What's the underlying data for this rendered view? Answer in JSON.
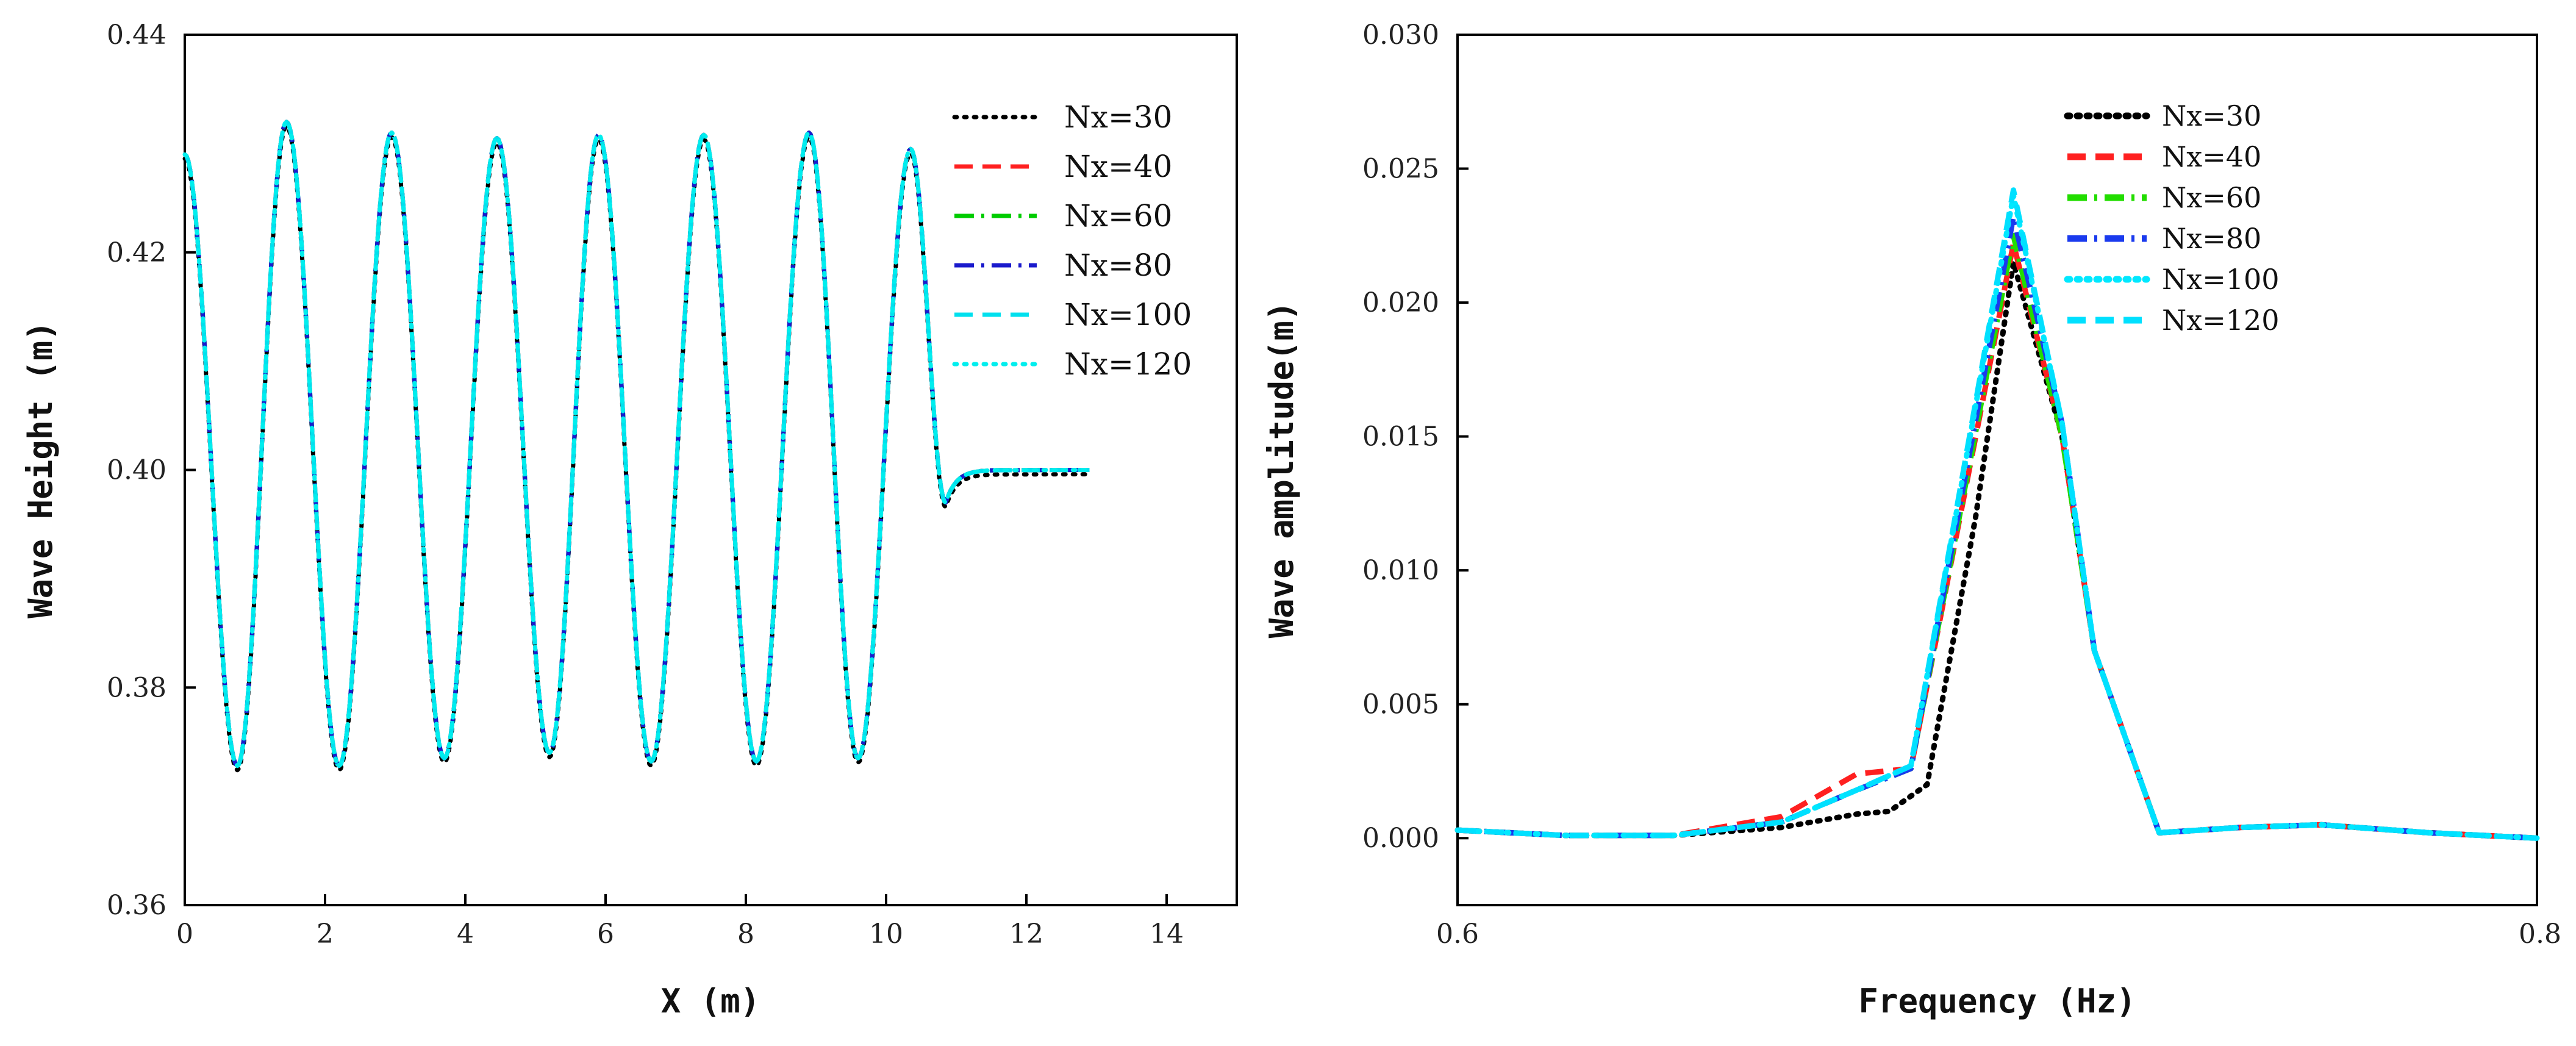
{
  "chart_data": [
    {
      "type": "line",
      "title": "",
      "xlabel": "X (m)",
      "ylabel": "Wave Height (m)",
      "xlim": [
        0,
        15
      ],
      "ylim": [
        0.36,
        0.44
      ],
      "xticks": [
        0,
        2,
        4,
        6,
        8,
        10,
        12,
        14
      ],
      "yticks": [
        0.36,
        0.38,
        0.4,
        0.42,
        0.44
      ],
      "xtick_labels": [
        "0",
        "2",
        "4",
        "6",
        "8",
        "10",
        "12",
        "14"
      ],
      "ytick_labels": [
        "0.36",
        "0.38",
        "0.40",
        "0.42",
        "0.44"
      ],
      "grid": false,
      "legend_position": "top-right",
      "series": [
        {
          "name": "Nx=30",
          "color": "#000000",
          "style": "dotted"
        },
        {
          "name": "Nx=40",
          "color": "#ff2020",
          "style": "dashed"
        },
        {
          "name": "Nx=60",
          "color": "#00cc00",
          "style": "dashdot"
        },
        {
          "name": "Nx=80",
          "color": "#1a1acc",
          "style": "dashdot"
        },
        {
          "name": "Nx=100",
          "color": "#00e0ee",
          "style": "dashed"
        },
        {
          "name": "Nx=120",
          "color": "#00eeee",
          "style": "dotted"
        }
      ],
      "wave_model": {
        "start_x": 0.0,
        "start_height": 0.429,
        "minima": [
          {
            "x": 0.75,
            "h": 0.3728
          },
          {
            "x": 2.2,
            "h": 0.3728
          },
          {
            "x": 3.7,
            "h": 0.3735
          },
          {
            "x": 5.2,
            "h": 0.374
          },
          {
            "x": 6.65,
            "h": 0.3732
          },
          {
            "x": 8.15,
            "h": 0.3732
          },
          {
            "x": 9.6,
            "h": 0.3735
          }
        ],
        "maxima": [
          {
            "x": 1.45,
            "h": 0.432
          },
          {
            "x": 2.95,
            "h": 0.431
          },
          {
            "x": 4.45,
            "h": 0.4305
          },
          {
            "x": 5.9,
            "h": 0.4308
          },
          {
            "x": 7.4,
            "h": 0.4308
          },
          {
            "x": 8.9,
            "h": 0.431
          },
          {
            "x": 10.35,
            "h": 0.4295
          }
        ],
        "trough_end": {
          "x": 10.85,
          "h": 0.397
        },
        "settle": {
          "x": 11.6,
          "h": 0.4
        },
        "end": {
          "x": 12.9,
          "h": 0.4
        }
      }
    },
    {
      "type": "line",
      "title": "",
      "xlabel": "Frequency (Hz)",
      "ylabel": "Wave amplitude(m)",
      "xlim": [
        0.6,
        0.8
      ],
      "ylim": [
        -0.0025,
        0.03
      ],
      "xticks": [
        0.6,
        0.8
      ],
      "yticks": [
        0.0,
        0.005,
        0.01,
        0.015,
        0.02,
        0.025,
        0.03
      ],
      "xtick_labels": [
        "0.6",
        "0.8"
      ],
      "ytick_labels": [
        "0.000",
        "0.005",
        "0.010",
        "0.015",
        "0.020",
        "0.025",
        "0.030"
      ],
      "grid": false,
      "legend_position": "top-center",
      "series": [
        {
          "name": "Nx=30",
          "color": "#000000",
          "style": "dotted",
          "x": [
            0.6,
            0.62,
            0.64,
            0.66,
            0.674,
            0.68,
            0.687,
            0.696,
            0.703,
            0.712,
            0.718,
            0.73,
            0.745,
            0.76,
            0.78,
            0.8
          ],
          "y": [
            0.0003,
            0.0001,
            0.0001,
            0.0004,
            0.0009,
            0.001,
            0.002,
            0.012,
            0.0215,
            0.015,
            0.007,
            0.0002,
            0.0004,
            0.0005,
            0.0002,
            0.0
          ]
        },
        {
          "name": "Nx=40",
          "color": "#ff2020",
          "style": "dashed",
          "x": [
            0.6,
            0.62,
            0.64,
            0.66,
            0.674,
            0.684,
            0.703,
            0.712,
            0.718,
            0.73,
            0.745,
            0.76,
            0.78,
            0.8
          ],
          "y": [
            0.0003,
            0.0001,
            0.0001,
            0.0008,
            0.0024,
            0.0026,
            0.0222,
            0.015,
            0.007,
            0.0002,
            0.0004,
            0.0005,
            0.0002,
            0.0
          ]
        },
        {
          "name": "Nx=60",
          "color": "#22dd00",
          "style": "dashdot",
          "x": [
            0.6,
            0.62,
            0.64,
            0.66,
            0.674,
            0.684,
            0.703,
            0.712,
            0.718,
            0.73,
            0.745,
            0.76,
            0.78,
            0.8
          ],
          "y": [
            0.0003,
            0.0001,
            0.0001,
            0.0006,
            0.0018,
            0.0026,
            0.0225,
            0.015,
            0.007,
            0.0002,
            0.0004,
            0.0005,
            0.0002,
            0.0
          ]
        },
        {
          "name": "Nx=80",
          "color": "#1a3aee",
          "style": "dashdot",
          "x": [
            0.6,
            0.62,
            0.64,
            0.66,
            0.674,
            0.684,
            0.703,
            0.712,
            0.718,
            0.73,
            0.745,
            0.76,
            0.78,
            0.8
          ],
          "y": [
            0.0003,
            0.0001,
            0.0001,
            0.0006,
            0.0018,
            0.0026,
            0.0232,
            0.0155,
            0.007,
            0.0002,
            0.0004,
            0.0005,
            0.0002,
            0.0
          ]
        },
        {
          "name": "Nx=100",
          "color": "#00e8ff",
          "style": "dotted",
          "x": [
            0.6,
            0.62,
            0.64,
            0.66,
            0.674,
            0.684,
            0.703,
            0.712,
            0.718,
            0.73,
            0.745,
            0.76,
            0.78,
            0.8
          ],
          "y": [
            0.0003,
            0.0001,
            0.0001,
            0.0006,
            0.0018,
            0.0027,
            0.024,
            0.0155,
            0.007,
            0.0002,
            0.0004,
            0.0005,
            0.0002,
            0.0
          ]
        },
        {
          "name": "Nx=120",
          "color": "#00e0ff",
          "style": "dashed",
          "x": [
            0.6,
            0.62,
            0.64,
            0.66,
            0.674,
            0.684,
            0.703,
            0.712,
            0.718,
            0.73,
            0.745,
            0.76,
            0.78,
            0.8
          ],
          "y": [
            0.0003,
            0.0001,
            0.0001,
            0.0006,
            0.0018,
            0.0027,
            0.0242,
            0.0155,
            0.007,
            0.0002,
            0.0004,
            0.0005,
            0.0002,
            0.0
          ]
        }
      ]
    }
  ]
}
